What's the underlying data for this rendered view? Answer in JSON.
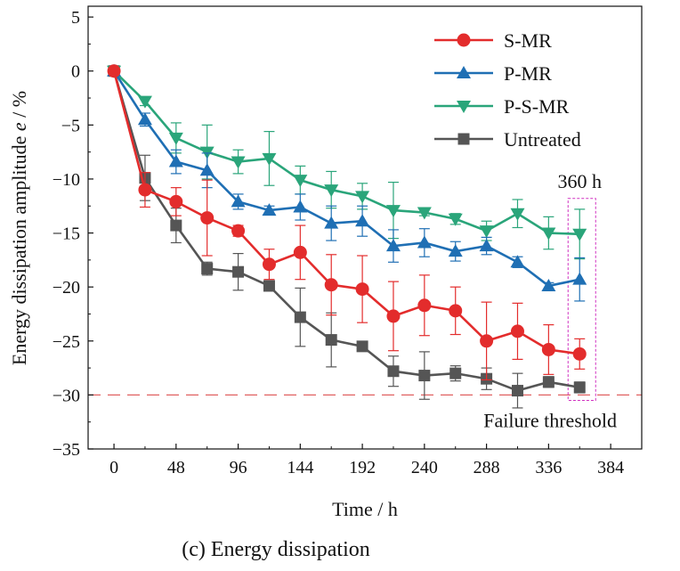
{
  "caption": "(c) Energy dissipation",
  "chart_data": {
    "type": "line",
    "xlabel": "Time / h",
    "ylabel_prefix": "Energy dissipation amplitude ",
    "ylabel_var": "e",
    "ylabel_suffix": " / %",
    "xlim": [
      -20,
      408
    ],
    "ylim": [
      -35,
      6
    ],
    "xticks": [
      0,
      48,
      96,
      144,
      192,
      240,
      288,
      336,
      384
    ],
    "yticks": [
      5,
      0,
      -5,
      -10,
      -15,
      -20,
      -25,
      -30,
      -35
    ],
    "legend_position": "top-right",
    "threshold": {
      "value": -30,
      "label": "Failure threshold",
      "color": "#e06060"
    },
    "highlight": {
      "label": "360 h",
      "x": 360,
      "ymin": -30.5,
      "ymax": -11.8,
      "color": "#d030c0"
    },
    "x": [
      0,
      24,
      48,
      72,
      96,
      120,
      144,
      168,
      192,
      216,
      240,
      264,
      288,
      312,
      336,
      360
    ],
    "series": [
      {
        "name": "S-MR",
        "color": "#e32c2c",
        "marker": "circle",
        "values": [
          0,
          -11.0,
          -12.1,
          -13.6,
          -14.8,
          -17.9,
          -16.8,
          -19.8,
          -20.2,
          -22.7,
          -21.7,
          -22.2,
          -25.0,
          -24.1,
          -25.8,
          -26.2
        ],
        "errors": [
          0,
          1.6,
          1.3,
          3.5,
          0.5,
          1.4,
          2.5,
          2.8,
          3.1,
          3.2,
          2.8,
          2.2,
          3.6,
          2.6,
          2.3,
          1.4
        ]
      },
      {
        "name": "P-MR",
        "color": "#1f6fb4",
        "marker": "triangle-up",
        "values": [
          0,
          -4.5,
          -8.4,
          -9.2,
          -12.1,
          -12.9,
          -12.6,
          -14.1,
          -13.9,
          -16.2,
          -15.9,
          -16.7,
          -16.2,
          -17.7,
          -19.9,
          -19.3
        ],
        "errors": [
          0,
          0.6,
          1.1,
          1.6,
          0.7,
          0.4,
          1.2,
          1.6,
          1.4,
          1.5,
          1.3,
          0.9,
          0.8,
          0.5,
          0.3,
          2.0
        ]
      },
      {
        "name": "P-S-MR",
        "color": "#2aa57a",
        "marker": "triangle-down",
        "values": [
          0,
          -2.8,
          -6.2,
          -7.5,
          -8.4,
          -8.1,
          -10.1,
          -11.0,
          -11.6,
          -12.9,
          -13.1,
          -13.7,
          -14.8,
          -13.2,
          -15.0,
          -15.1
        ],
        "errors": [
          0,
          0.4,
          1.4,
          2.5,
          1.1,
          2.5,
          1.3,
          1.7,
          1.2,
          2.6,
          0.3,
          0.5,
          0.9,
          1.3,
          1.5,
          2.3
        ]
      },
      {
        "name": "Untreated",
        "color": "#555555",
        "marker": "square",
        "values": [
          0,
          -9.9,
          -14.3,
          -18.3,
          -18.6,
          -19.9,
          -22.8,
          -24.9,
          -25.5,
          -27.8,
          -28.2,
          -28.0,
          -28.5,
          -29.6,
          -28.8,
          -29.3
        ],
        "errors": [
          0,
          2.1,
          1.6,
          0.6,
          1.7,
          0.4,
          2.7,
          2.5,
          0.4,
          1.4,
          2.2,
          0.7,
          1.0,
          1.6,
          0.5,
          0.5
        ]
      }
    ]
  }
}
